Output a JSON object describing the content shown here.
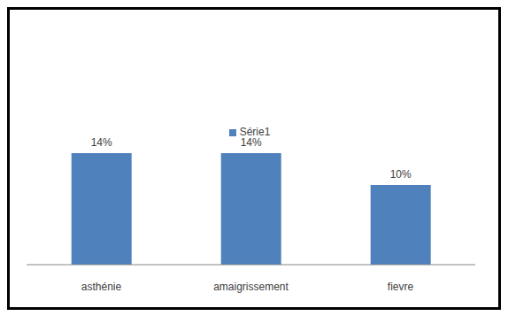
{
  "chart_data": {
    "type": "bar",
    "categories": [
      "asthénie",
      "amaigrissement",
      "fievre"
    ],
    "series": [
      {
        "name": "Série1",
        "color": "#4f81bd",
        "values": [
          14,
          14,
          10
        ],
        "value_labels": [
          "14%",
          "14%",
          "10%"
        ]
      }
    ],
    "ylim": [
      0,
      28
    ],
    "grid": false,
    "legend": "top",
    "data_labels": true,
    "tick_labels": "x"
  }
}
